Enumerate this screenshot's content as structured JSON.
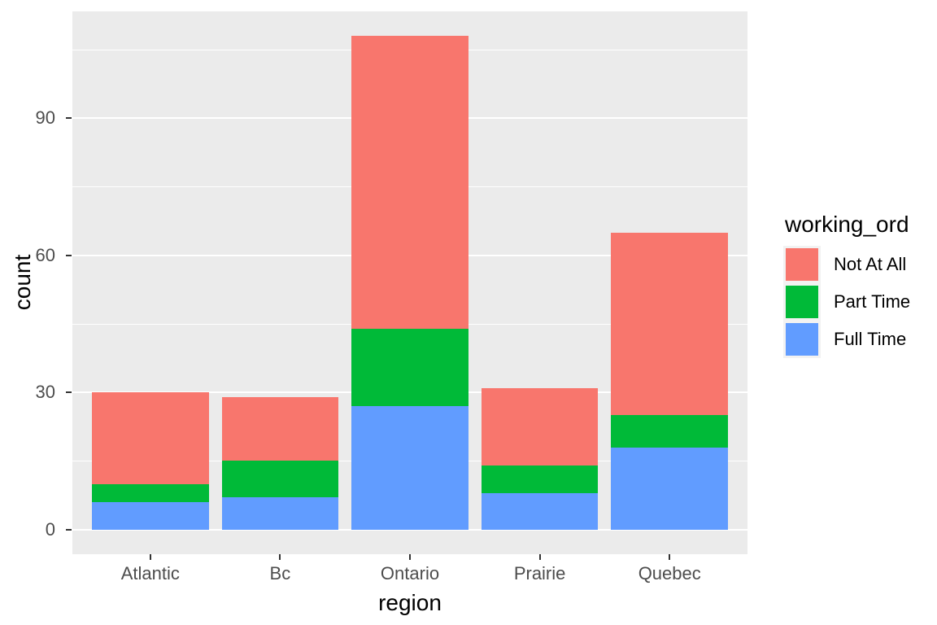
{
  "chart_data": {
    "type": "bar",
    "stacked": true,
    "title": "",
    "xlabel": "region",
    "ylabel": "count",
    "categories": [
      "Atlantic",
      "Bc",
      "Ontario",
      "Prairie",
      "Quebec"
    ],
    "series": [
      {
        "name": "Full Time",
        "color": "#619CFF",
        "values": [
          6,
          7,
          27,
          8,
          18
        ]
      },
      {
        "name": "Part Time",
        "color": "#00BA38",
        "values": [
          4,
          8,
          17,
          6,
          7
        ]
      },
      {
        "name": "Not At All",
        "color": "#F8766D",
        "values": [
          20,
          14,
          64,
          17,
          40
        ]
      }
    ],
    "stack_totals": [
      30,
      29,
      108,
      31,
      65
    ],
    "y_ticks": [
      0,
      30,
      60,
      90
    ],
    "y_minor_ticks": [
      15,
      45,
      75,
      105
    ],
    "ylim": [
      -5.4,
      113.4
    ],
    "grid": true,
    "legend": {
      "title": "working_ord",
      "position": "right",
      "entries": [
        "Not At All",
        "Part Time",
        "Full Time"
      ]
    },
    "theme": {
      "panel_bg": "#EBEBEB",
      "grid_color": "#FFFFFF",
      "tick_color": "#333333",
      "axis_text_color": "#4D4D4D",
      "title_color": "#000000",
      "legend_key_bg": "#F2F2F2"
    }
  }
}
